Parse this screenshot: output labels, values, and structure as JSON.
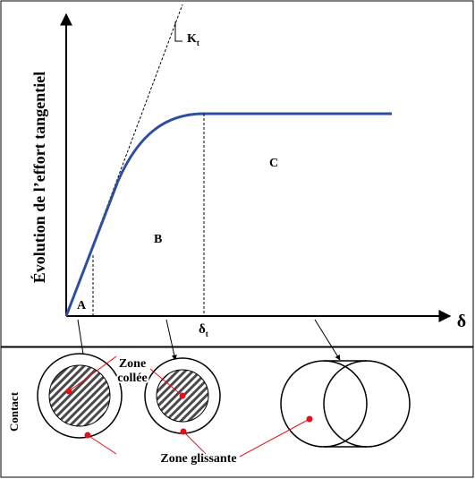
{
  "y_axis_label": "Évolution de l’effort tangentiel",
  "x_axis_label": "δ",
  "stiffness_label": {
    "main": "K",
    "sub": "t"
  },
  "threshold_label": {
    "main": "δ",
    "sub": "t"
  },
  "zones": {
    "a": "A",
    "b": "B",
    "c": "C"
  },
  "contact_label": "Contact",
  "stick_zone_label": {
    "line1": "Zone",
    "line2": "collée"
  },
  "slip_zone_label": "Zone glissante",
  "colors": {
    "curve": "#2E4FA0",
    "leader": "#E3101C",
    "hatch": "#4a4a4a",
    "line": "#000000"
  }
}
